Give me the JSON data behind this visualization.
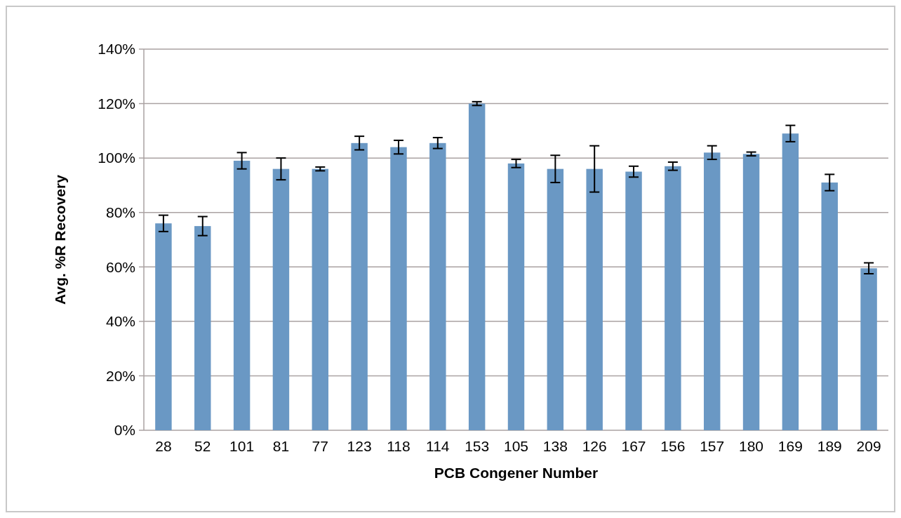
{
  "chart_data": {
    "type": "bar",
    "xlabel": "PCB Congener Number",
    "ylabel": "Avg. %R Recovery",
    "categories": [
      "28",
      "52",
      "101",
      "81",
      "77",
      "123",
      "118",
      "114",
      "153",
      "105",
      "138",
      "126",
      "167",
      "156",
      "157",
      "180",
      "169",
      "189",
      "209"
    ],
    "values": [
      76,
      75,
      99,
      96,
      96,
      105.5,
      104,
      105.5,
      120,
      98,
      96,
      96,
      95,
      97,
      102,
      101.5,
      109,
      91,
      59.5
    ],
    "errors": [
      3,
      3.5,
      3,
      4,
      0.7,
      2.5,
      2.5,
      2,
      0.7,
      1.5,
      5,
      8.5,
      2,
      1.5,
      2.5,
      0.7,
      3,
      3,
      2
    ],
    "color": "#6a98c4",
    "ylim": [
      0,
      140
    ],
    "yticks": [
      {
        "value": 0,
        "label": "0%"
      },
      {
        "value": 20,
        "label": "20%"
      },
      {
        "value": 40,
        "label": "40%"
      },
      {
        "value": 60,
        "label": "60%"
      },
      {
        "value": 80,
        "label": "80%"
      },
      {
        "value": 100,
        "label": "100%"
      },
      {
        "value": 120,
        "label": "120%"
      },
      {
        "value": 140,
        "label": "140%"
      }
    ],
    "grid": "y"
  }
}
